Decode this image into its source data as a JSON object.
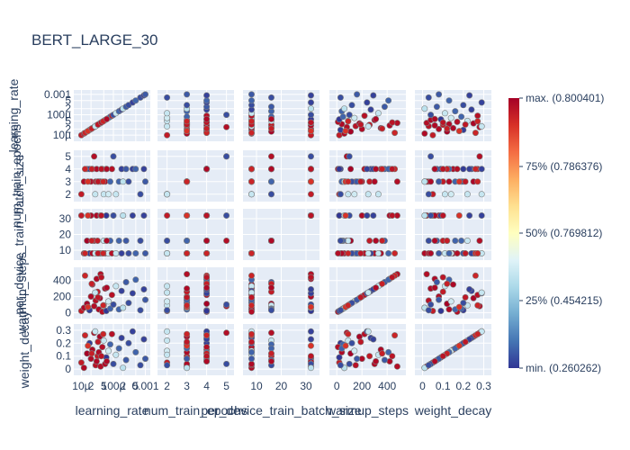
{
  "chart_data": {
    "type": "scatter",
    "title": "BERT_LARGE_30",
    "variables": [
      {
        "key": "learning_rate",
        "label": "learning_rate",
        "scale": "log",
        "range": [
          7.5e-06,
          0.0011
        ],
        "ticks": [
          {
            "value": 1e-05,
            "label": "10µ"
          },
          {
            "value": 2e-05,
            "label": "2"
          },
          {
            "value": 5e-05,
            "label": "5"
          },
          {
            "value": 0.0001,
            "label": "100µ"
          },
          {
            "value": 0.0002,
            "label": "2"
          },
          {
            "value": 0.0005,
            "label": "5"
          },
          {
            "value": 0.001,
            "label": "0.001"
          }
        ]
      },
      {
        "key": "num_train_epochs",
        "label": "num_train_epochs",
        "scale": "linear",
        "range": [
          1.7,
          5.2
        ],
        "ticks": [
          {
            "value": 2,
            "label": "2"
          },
          {
            "value": 3,
            "label": "3"
          },
          {
            "value": 4,
            "label": "4"
          },
          {
            "value": 5,
            "label": "5"
          }
        ]
      },
      {
        "key": "per_device_train_batch_size",
        "label": "per_device_train_batch_size",
        "scale": "linear",
        "range": [
          6,
          34
        ],
        "ticks": [
          {
            "value": 10,
            "label": "10"
          },
          {
            "value": 20,
            "label": "20"
          },
          {
            "value": 30,
            "label": "30"
          }
        ]
      },
      {
        "key": "warmup_steps",
        "label": "warmup_steps",
        "scale": "linear",
        "range": [
          -30,
          520
        ],
        "ticks": [
          {
            "value": 0,
            "label": "0"
          },
          {
            "value": 200,
            "label": "200"
          },
          {
            "value": 400,
            "label": "400"
          }
        ]
      },
      {
        "key": "weight_decay",
        "label": "weight_decay",
        "scale": "linear",
        "range": [
          -0.02,
          0.32
        ],
        "ticks": [
          {
            "value": 0,
            "label": "0"
          },
          {
            "value": 0.1,
            "label": "0.1"
          },
          {
            "value": 0.2,
            "label": "0.2"
          },
          {
            "value": 0.3,
            "label": "0.3"
          }
        ]
      }
    ],
    "colorbar": {
      "min": 0.260262,
      "max": 0.800401,
      "ticks": [
        {
          "value": 0.800401,
          "label": "max. (0.800401)"
        },
        {
          "value": 0.786376,
          "label": "75% (0.786376)"
        },
        {
          "value": 0.769812,
          "label": "50% (0.769812)"
        },
        {
          "value": 0.454215,
          "label": "25% (0.454215)"
        },
        {
          "value": 0.260262,
          "label": "min. (0.260262)"
        }
      ],
      "colorscale": [
        "#313695",
        "#4575b4",
        "#74add1",
        "#abd9e9",
        "#e0f3f8",
        "#ffffbf",
        "#fee090",
        "#fdae61",
        "#f46d43",
        "#d73027",
        "#a50026"
      ]
    },
    "points": [
      [
        1e-05,
        2,
        32,
        20,
        0.05,
        0.77
      ],
      [
        1.2e-05,
        3,
        8,
        60,
        0.01,
        0.789
      ],
      [
        1.5e-05,
        4,
        16,
        110,
        0.12,
        0.8
      ],
      [
        1.8e-05,
        4,
        8,
        30,
        0.2,
        0.265
      ],
      [
        2e-05,
        3,
        32,
        200,
        0.08,
        0.788
      ],
      [
        2.2e-05,
        4,
        8,
        350,
        0.15,
        0.791
      ],
      [
        2.5e-05,
        5,
        16,
        80,
        0.28,
        0.785
      ],
      [
        2.8e-05,
        3,
        8,
        150,
        0.03,
        0.78
      ],
      [
        3e-05,
        4,
        32,
        420,
        0.06,
        0.79
      ],
      [
        3.2e-05,
        3,
        16,
        260,
        0.1,
        0.77
      ],
      [
        3.5e-05,
        3,
        8,
        40,
        0.13,
        0.79
      ],
      [
        3.8e-05,
        3,
        8,
        180,
        0.25,
        0.795
      ],
      [
        4e-05,
        3,
        32,
        480,
        0.02,
        0.785
      ],
      [
        4.5e-05,
        4,
        8,
        10,
        0.17,
        0.785
      ],
      [
        5e-05,
        2,
        16,
        90,
        0.22,
        0.45
      ],
      [
        5.5e-05,
        3,
        8,
        300,
        0.04,
        0.79
      ],
      [
        6e-05,
        4,
        32,
        20,
        0.09,
        0.26
      ],
      [
        7e-05,
        2,
        8,
        140,
        0.14,
        0.46
      ],
      [
        8e-05,
        3,
        16,
        50,
        0.19,
        0.3
      ],
      [
        9e-05,
        4,
        8,
        220,
        0.27,
        0.782
      ],
      [
        0.0001,
        5,
        32,
        100,
        0.04,
        0.28
      ],
      [
        0.00012,
        2,
        8,
        330,
        0.11,
        0.45
      ],
      [
        0.00015,
        3,
        16,
        40,
        0.16,
        0.3
      ],
      [
        0.00018,
        4,
        8,
        270,
        0.24,
        0.27
      ],
      [
        0.0002,
        3,
        32,
        60,
        0.01,
        0.44
      ],
      [
        0.00025,
        4,
        16,
        380,
        0.07,
        0.29
      ],
      [
        0.0003,
        3,
        8,
        120,
        0.2,
        0.28
      ],
      [
        0.0004,
        4,
        32,
        240,
        0.29,
        0.27
      ],
      [
        0.0005,
        4,
        8,
        410,
        0.13,
        0.3
      ],
      [
        0.0007,
        2,
        16,
        30,
        0.03,
        0.28
      ],
      [
        0.0009,
        4,
        32,
        290,
        0.23,
        0.27
      ],
      [
        0.001,
        3,
        8,
        160,
        0.08,
        0.29
      ],
      [
        1.3e-05,
        4,
        8,
        460,
        0.26,
        0.76
      ],
      [
        1.6e-05,
        3,
        32,
        70,
        0.18,
        0.745
      ],
      [
        2.1e-05,
        4,
        16,
        360,
        0.12,
        0.765
      ],
      [
        2.7e-05,
        2,
        8,
        250,
        0.29,
        0.45
      ],
      [
        3.3e-05,
        3,
        8,
        190,
        0.21,
        0.775
      ],
      [
        4.2e-05,
        4,
        32,
        440,
        0.1,
        0.778
      ],
      [
        4.8e-05,
        3,
        8,
        90,
        0.27,
        0.76
      ],
      [
        6.2e-05,
        4,
        16,
        310,
        0.06,
        0.79
      ]
    ]
  }
}
